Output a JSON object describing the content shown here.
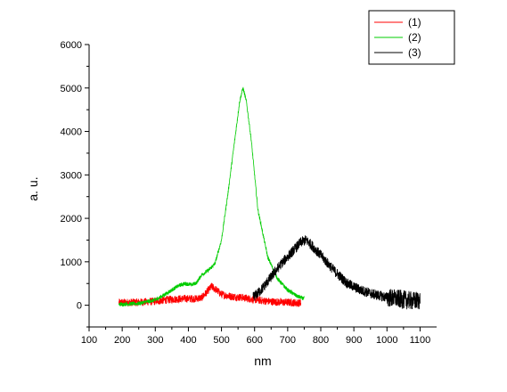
{
  "chart_data": {
    "type": "line",
    "xlabel": "nm",
    "ylabel": "a. u.",
    "xlim": [
      100,
      1150
    ],
    "ylim": [
      -500,
      6000
    ],
    "xticks": [
      100,
      200,
      300,
      400,
      500,
      600,
      700,
      800,
      900,
      1000,
      1100
    ],
    "yticks": [
      0,
      1000,
      2000,
      3000,
      4000,
      5000,
      6000
    ],
    "legend_position": "top-right",
    "grid": false,
    "series": [
      {
        "name": "(1)",
        "color": "#ff0000",
        "points": [
          [
            190,
            60
          ],
          [
            250,
            70
          ],
          [
            300,
            90
          ],
          [
            340,
            130
          ],
          [
            380,
            150
          ],
          [
            420,
            150
          ],
          [
            440,
            170
          ],
          [
            455,
            300
          ],
          [
            470,
            430
          ],
          [
            485,
            350
          ],
          [
            500,
            250
          ],
          [
            530,
            200
          ],
          [
            560,
            180
          ],
          [
            600,
            130
          ],
          [
            640,
            90
          ],
          [
            680,
            70
          ],
          [
            720,
            60
          ],
          [
            740,
            50
          ]
        ]
      },
      {
        "name": "(2)",
        "color": "#00cc00",
        "points": [
          [
            190,
            20
          ],
          [
            250,
            40
          ],
          [
            300,
            120
          ],
          [
            340,
            300
          ],
          [
            370,
            450
          ],
          [
            390,
            500
          ],
          [
            410,
            470
          ],
          [
            425,
            520
          ],
          [
            440,
            700
          ],
          [
            460,
            800
          ],
          [
            480,
            950
          ],
          [
            500,
            1500
          ],
          [
            520,
            2600
          ],
          [
            540,
            3800
          ],
          [
            555,
            4700
          ],
          [
            565,
            5000
          ],
          [
            575,
            4700
          ],
          [
            590,
            3800
          ],
          [
            610,
            2200
          ],
          [
            640,
            1100
          ],
          [
            670,
            600
          ],
          [
            700,
            350
          ],
          [
            730,
            200
          ],
          [
            750,
            150
          ]
        ]
      },
      {
        "name": "(3)",
        "color": "#000000",
        "points": [
          [
            595,
            180
          ],
          [
            620,
            350
          ],
          [
            650,
            650
          ],
          [
            680,
            950
          ],
          [
            710,
            1200
          ],
          [
            740,
            1450
          ],
          [
            755,
            1500
          ],
          [
            770,
            1400
          ],
          [
            800,
            1150
          ],
          [
            840,
            800
          ],
          [
            880,
            500
          ],
          [
            920,
            350
          ],
          [
            960,
            250
          ],
          [
            1000,
            180
          ],
          [
            1040,
            140
          ],
          [
            1080,
            100
          ],
          [
            1100,
            120
          ]
        ]
      }
    ]
  }
}
